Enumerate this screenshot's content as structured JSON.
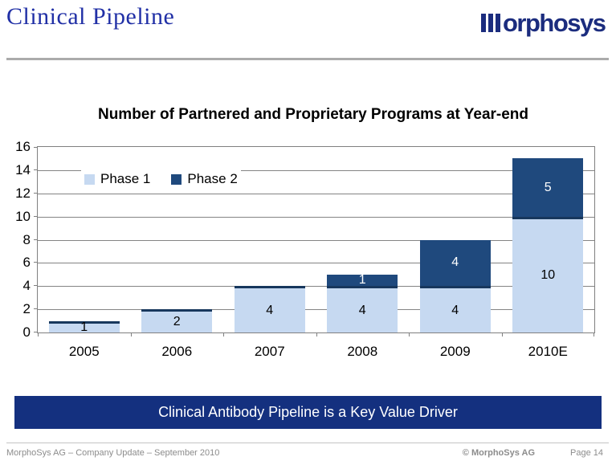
{
  "slide": {
    "title": "Clinical Pipeline",
    "logo_text": "morphosys",
    "banner": "Clinical Antibody Pipeline is a Key Value Driver",
    "footer": {
      "left": "MorphoSys AG  –  Company Update  –  September 2010",
      "copyright": "© MorphoSys AG",
      "page": "Page 14"
    }
  },
  "colors": {
    "title_blue": "#2130A6",
    "logo_blue": "#1B2C7E",
    "banner_navy": "#14307F",
    "phase1_light_blue": "#C6D9F1",
    "phase2_dark_blue": "#1F497D",
    "bar_top_border": "#17375D",
    "grid_gray": "#808080",
    "footer_gray": "#8C8C8C"
  },
  "chart_data": {
    "type": "bar",
    "stacked": true,
    "title": "Number of Partnered and Proprietary Programs at Year-end",
    "categories": [
      "2005",
      "2006",
      "2007",
      "2008",
      "2009",
      "2010E"
    ],
    "series": [
      {
        "name": "Phase 1",
        "color": "#C6D9F1",
        "label_color": "#000000",
        "top_border": "#17375D",
        "values": [
          1,
          2,
          4,
          4,
          4,
          10
        ]
      },
      {
        "name": "Phase 2",
        "color": "#1F497D",
        "label_color": "#FFFFFF",
        "values": [
          0,
          0,
          0,
          1,
          4,
          5
        ]
      }
    ],
    "totals": [
      1,
      2,
      4,
      5,
      8,
      15
    ],
    "xlabel": "",
    "ylabel": "",
    "ylim": [
      0,
      16
    ],
    "ytick_step": 2,
    "grid": true,
    "legend_position": "top-left-inside"
  }
}
